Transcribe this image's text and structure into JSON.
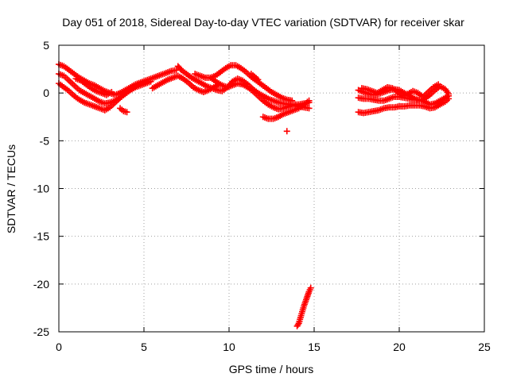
{
  "chart_data": {
    "type": "scatter",
    "title": "Day 051 of 2018, Sidereal Day-to-day VTEC variation (SDTVAR) for receiver skar",
    "xlabel": "GPS time / hours",
    "ylabel": "SDTVAR / TECUs",
    "xlim": [
      0,
      25
    ],
    "ylim": [
      -25,
      5
    ],
    "xticks": [
      0,
      5,
      10,
      15,
      20,
      25
    ],
    "yticks": [
      -25,
      -20,
      -15,
      -10,
      -5,
      0,
      5
    ],
    "grid": true,
    "legend": "none",
    "marker": "plus",
    "series": [
      {
        "name": "SDTVAR",
        "color": "#ff0000",
        "tracks": [
          [
            [
              0.0,
              3.0
            ],
            [
              0.3,
              2.8
            ],
            [
              0.6,
              2.4
            ],
            [
              0.9,
              2.0
            ],
            [
              1.2,
              1.6
            ],
            [
              1.5,
              1.3
            ],
            [
              1.8,
              1.0
            ],
            [
              2.1,
              0.8
            ],
            [
              2.4,
              0.5
            ],
            [
              2.7,
              0.2
            ],
            [
              3.0,
              0.0
            ],
            [
              3.3,
              -0.2
            ],
            [
              3.6,
              0.0
            ],
            [
              3.9,
              0.3
            ],
            [
              4.2,
              0.6
            ],
            [
              4.5,
              0.9
            ],
            [
              4.8,
              1.1
            ],
            [
              5.1,
              1.3
            ],
            [
              5.4,
              1.5
            ],
            [
              5.7,
              1.7
            ],
            [
              6.0,
              1.9
            ],
            [
              6.3,
              2.1
            ],
            [
              6.6,
              2.3
            ],
            [
              6.9,
              2.4
            ]
          ],
          [
            [
              0.0,
              2.0
            ],
            [
              0.3,
              1.8
            ],
            [
              0.6,
              1.3
            ],
            [
              0.9,
              0.8
            ],
            [
              1.2,
              0.3
            ],
            [
              1.5,
              0.0
            ],
            [
              1.8,
              -0.3
            ],
            [
              2.1,
              -0.6
            ],
            [
              2.4,
              -0.9
            ],
            [
              2.7,
              -1.1
            ],
            [
              3.0,
              -1.0
            ],
            [
              3.3,
              -0.8
            ],
            [
              3.6,
              -0.5
            ],
            [
              3.9,
              -0.1
            ],
            [
              4.2,
              0.3
            ],
            [
              4.5,
              0.6
            ],
            [
              4.8,
              0.8
            ],
            [
              5.1,
              1.0
            ],
            [
              5.4,
              1.2
            ]
          ],
          [
            [
              0.0,
              1.0
            ],
            [
              0.3,
              0.6
            ],
            [
              0.6,
              0.2
            ],
            [
              0.9,
              -0.3
            ],
            [
              1.2,
              -0.7
            ],
            [
              1.5,
              -1.0
            ],
            [
              1.8,
              -1.2
            ],
            [
              2.1,
              -1.4
            ],
            [
              2.4,
              -1.6
            ],
            [
              2.7,
              -1.8
            ],
            [
              3.0,
              -1.5
            ],
            [
              3.3,
              -1.0
            ],
            [
              3.6,
              -0.5
            ],
            [
              3.9,
              0.0
            ],
            [
              4.2,
              0.4
            ],
            [
              4.5,
              0.8
            ],
            [
              4.8,
              1.0
            ]
          ],
          [
            [
              3.6,
              -1.6
            ],
            [
              3.8,
              -1.9
            ],
            [
              4.0,
              -2.0
            ]
          ],
          [
            [
              1.0,
              1.5
            ],
            [
              1.3,
              1.3
            ],
            [
              1.6,
              0.9
            ],
            [
              1.9,
              0.5
            ],
            [
              2.2,
              0.2
            ],
            [
              2.5,
              0.0
            ],
            [
              2.8,
              -0.2
            ],
            [
              3.1,
              0.1
            ]
          ],
          [
            [
              5.5,
              0.5
            ],
            [
              5.8,
              0.8
            ],
            [
              6.1,
              1.1
            ],
            [
              6.4,
              1.4
            ],
            [
              6.7,
              1.6
            ],
            [
              7.0,
              1.8
            ],
            [
              7.3,
              1.5
            ],
            [
              7.6,
              1.1
            ],
            [
              7.9,
              0.6
            ],
            [
              8.2,
              0.3
            ],
            [
              8.5,
              0.1
            ],
            [
              8.8,
              0.3
            ],
            [
              9.1,
              0.6
            ],
            [
              9.4,
              0.9
            ]
          ],
          [
            [
              7.0,
              2.8
            ],
            [
              7.2,
              2.4
            ],
            [
              7.5,
              2.0
            ],
            [
              7.8,
              1.6
            ],
            [
              8.1,
              1.3
            ],
            [
              8.4,
              1.0
            ],
            [
              8.7,
              0.7
            ],
            [
              9.0,
              0.5
            ],
            [
              9.3,
              0.3
            ],
            [
              9.6,
              0.2
            ],
            [
              9.9,
              0.6
            ],
            [
              10.2,
              1.2
            ],
            [
              10.5,
              1.5
            ],
            [
              10.8,
              1.3
            ],
            [
              11.1,
              0.9
            ],
            [
              11.4,
              0.4
            ],
            [
              11.7,
              0.0
            ],
            [
              12.0,
              -0.3
            ],
            [
              12.3,
              -0.6
            ],
            [
              12.6,
              -0.8
            ],
            [
              12.9,
              -1.0
            ],
            [
              13.2,
              -1.1
            ],
            [
              13.5,
              -1.2
            ],
            [
              13.8,
              -1.2
            ],
            [
              14.1,
              -1.2
            ],
            [
              14.4,
              -1.1
            ],
            [
              14.7,
              -1.0
            ]
          ],
          [
            [
              8.0,
              2.0
            ],
            [
              8.3,
              1.8
            ],
            [
              8.6,
              1.6
            ],
            [
              8.9,
              1.6
            ],
            [
              9.2,
              1.8
            ],
            [
              9.5,
              2.2
            ],
            [
              9.8,
              2.6
            ],
            [
              10.1,
              2.9
            ],
            [
              10.4,
              2.9
            ],
            [
              10.7,
              2.6
            ],
            [
              11.0,
              2.2
            ],
            [
              11.3,
              1.7
            ],
            [
              11.6,
              1.3
            ],
            [
              11.9,
              0.9
            ],
            [
              12.2,
              0.5
            ],
            [
              12.5,
              0.1
            ],
            [
              12.8,
              -0.2
            ],
            [
              13.1,
              -0.5
            ],
            [
              13.4,
              -0.7
            ],
            [
              13.7,
              -0.8
            ]
          ],
          [
            [
              9.0,
              1.5
            ],
            [
              9.3,
              1.1
            ],
            [
              9.6,
              0.8
            ],
            [
              9.9,
              0.6
            ],
            [
              10.2,
              0.8
            ],
            [
              10.5,
              1.0
            ],
            [
              10.8,
              0.9
            ],
            [
              11.1,
              0.6
            ],
            [
              11.4,
              0.2
            ],
            [
              11.7,
              -0.3
            ],
            [
              12.0,
              -0.8
            ],
            [
              12.3,
              -1.2
            ],
            [
              12.6,
              -1.5
            ],
            [
              12.9,
              -1.7
            ],
            [
              13.2,
              -1.6
            ],
            [
              13.5,
              -1.4
            ],
            [
              13.8,
              -1.3
            ],
            [
              14.1,
              -1.4
            ],
            [
              14.4,
              -1.5
            ],
            [
              14.7,
              -1.6
            ]
          ],
          [
            [
              12.0,
              -2.5
            ],
            [
              12.3,
              -2.7
            ],
            [
              12.6,
              -2.7
            ],
            [
              12.9,
              -2.5
            ],
            [
              13.2,
              -2.2
            ],
            [
              13.5,
              -2.0
            ],
            [
              13.8,
              -1.8
            ],
            [
              14.1,
              -1.6
            ],
            [
              14.4,
              -1.2
            ],
            [
              14.7,
              -0.8
            ]
          ],
          [
            [
              11.3,
              2.0
            ],
            [
              11.5,
              1.7
            ],
            [
              11.7,
              1.4
            ]
          ],
          [
            [
              13.4,
              -4.0
            ]
          ],
          [
            [
              14.0,
              -24.4
            ],
            [
              14.1,
              -24.1
            ],
            [
              14.2,
              -23.5
            ],
            [
              14.3,
              -22.9
            ],
            [
              14.4,
              -22.3
            ],
            [
              14.5,
              -21.8
            ],
            [
              14.6,
              -21.3
            ],
            [
              14.7,
              -20.8
            ],
            [
              14.8,
              -20.4
            ]
          ],
          [
            [
              17.6,
              0.3
            ],
            [
              17.9,
              0.1
            ],
            [
              18.2,
              -0.1
            ],
            [
              18.5,
              -0.2
            ],
            [
              18.8,
              -0.1
            ],
            [
              19.1,
              0.1
            ],
            [
              19.4,
              0.3
            ],
            [
              19.7,
              0.4
            ],
            [
              20.0,
              0.3
            ],
            [
              20.3,
              0.0
            ],
            [
              20.6,
              -0.3
            ],
            [
              20.9,
              -0.6
            ],
            [
              21.2,
              -0.8
            ],
            [
              21.5,
              -0.6
            ],
            [
              21.8,
              -0.2
            ],
            [
              22.1,
              0.3
            ],
            [
              22.4,
              0.7
            ],
            [
              22.7,
              0.4
            ],
            [
              22.9,
              -0.1
            ]
          ],
          [
            [
              17.6,
              -0.5
            ],
            [
              17.9,
              -0.6
            ],
            [
              18.2,
              -0.6
            ],
            [
              18.5,
              -0.7
            ],
            [
              18.8,
              -0.8
            ],
            [
              19.1,
              -0.8
            ],
            [
              19.4,
              -0.6
            ],
            [
              19.7,
              -0.4
            ],
            [
              20.0,
              -0.4
            ],
            [
              20.3,
              -0.5
            ],
            [
              20.6,
              -0.6
            ],
            [
              20.9,
              -0.7
            ],
            [
              21.2,
              -0.7
            ],
            [
              21.5,
              -0.9
            ],
            [
              21.8,
              -1.2
            ],
            [
              22.1,
              -1.1
            ],
            [
              22.4,
              -0.8
            ],
            [
              22.7,
              -0.5
            ],
            [
              22.9,
              -0.3
            ]
          ],
          [
            [
              17.6,
              -2.0
            ],
            [
              17.9,
              -2.1
            ],
            [
              18.2,
              -2.0
            ],
            [
              18.5,
              -1.9
            ],
            [
              18.8,
              -1.8
            ],
            [
              19.1,
              -1.6
            ],
            [
              19.4,
              -1.5
            ],
            [
              19.7,
              -1.5
            ],
            [
              20.0,
              -1.4
            ],
            [
              20.3,
              -1.4
            ],
            [
              20.6,
              -1.3
            ],
            [
              20.9,
              -1.3
            ],
            [
              21.2,
              -1.3
            ],
            [
              21.5,
              -1.4
            ],
            [
              21.8,
              -1.6
            ],
            [
              22.1,
              -1.5
            ],
            [
              22.4,
              -1.2
            ],
            [
              22.7,
              -0.9
            ],
            [
              22.9,
              -0.6
            ]
          ],
          [
            [
              17.8,
              0.5
            ],
            [
              18.1,
              0.4
            ],
            [
              18.4,
              0.2
            ],
            [
              18.7,
              0.0
            ],
            [
              19.0,
              0.3
            ],
            [
              19.3,
              0.6
            ],
            [
              19.6,
              0.5
            ],
            [
              19.9,
              0.1
            ],
            [
              20.2,
              -0.3
            ],
            [
              20.5,
              -0.1
            ],
            [
              20.8,
              0.2
            ],
            [
              21.1,
              0.0
            ],
            [
              21.4,
              -0.4
            ],
            [
              21.7,
              0.1
            ],
            [
              22.0,
              0.6
            ],
            [
              22.3,
              0.9
            ]
          ]
        ]
      }
    ]
  }
}
